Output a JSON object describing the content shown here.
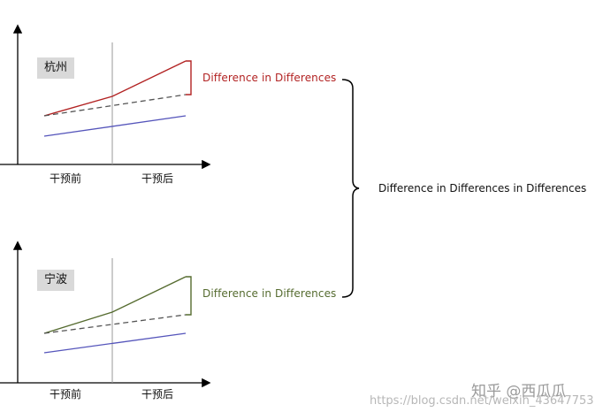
{
  "panels": [
    {
      "city": "杭州",
      "periods": [
        "干预前",
        "干预后"
      ],
      "annotation": "Difference in Differences",
      "treated_color": "#b22222",
      "control_color": "#5555bb"
    },
    {
      "city": "宁波",
      "periods": [
        "干预前",
        "干预后"
      ],
      "annotation": "Difference in Differences",
      "treated_color": "#556b2f",
      "control_color": "#5555bb"
    }
  ],
  "summary": "Difference in Differences in Differences",
  "watermark": {
    "brand": "知乎 @西瓜瓜",
    "url": "https://blog.csdn.net/weixin_43647753"
  }
}
